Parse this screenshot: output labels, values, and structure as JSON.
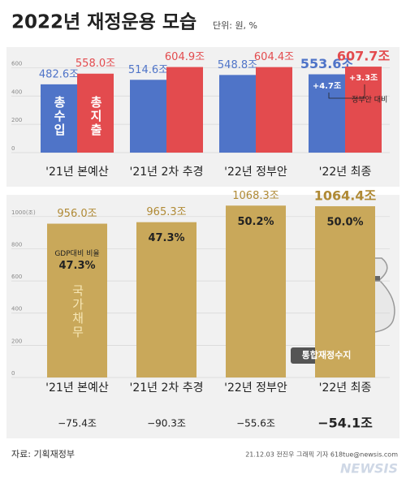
{
  "header": {
    "title": "2022년 재정운용 모습",
    "unit": "단위: 원, %"
  },
  "chart_data": [
    {
      "type": "bar",
      "categories": [
        "'21년 본예산",
        "'21년 2차 추경",
        "'22년 정부안",
        "'22년 최종"
      ],
      "series": [
        {
          "name": "총수입",
          "color": "#4f74c8",
          "values": [
            482.6,
            514.6,
            548.8,
            553.6
          ],
          "value_labels": [
            "482.6조",
            "514.6조",
            "548.8조",
            "553.6조"
          ]
        },
        {
          "name": "총지출",
          "color": "#e34b4e",
          "values": [
            558.0,
            604.9,
            604.4,
            607.7
          ],
          "value_labels": [
            "558.0조",
            "604.9조",
            "604.4조",
            "607.7조"
          ]
        }
      ],
      "ylim": [
        0,
        700
      ],
      "yticks": [
        0,
        200,
        400,
        600
      ],
      "annotations": [
        "+4.7조",
        "+3.3조",
        "정부안 대비"
      ]
    },
    {
      "type": "bar",
      "categories": [
        "'21년 본예산",
        "'21년 2차 추경",
        "'22년 정부안",
        "'22년 최종"
      ],
      "series": [
        {
          "name": "국가채무",
          "color": "#c9a85a",
          "values": [
            956.0,
            965.3,
            1068.3,
            1064.4
          ],
          "value_labels": [
            "956.0조",
            "965.3조",
            "1068.3조",
            "1064.4조"
          ]
        },
        {
          "name": "GDP대비 비율",
          "values": [
            47.3,
            47.3,
            50.2,
            50.0
          ],
          "value_labels": [
            "47.3%",
            "47.3%",
            "50.2%",
            "50.0%"
          ]
        }
      ],
      "ylim": [
        0,
        1100
      ],
      "yticks": [
        0,
        200,
        400,
        600,
        800,
        {
          "value": 1000,
          "label": "1000(조)"
        }
      ]
    },
    {
      "type": "bar",
      "series": [
        {
          "name": "통합재정수지",
          "color": "#8c8c8c",
          "values": [
            -75.4,
            -90.3,
            -55.6,
            -54.1
          ],
          "value_labels": [
            "−75.4조",
            "−90.3조",
            "−55.6조",
            "−54.1조"
          ]
        }
      ],
      "ylim": [
        -400,
        0
      ]
    }
  ],
  "footer": {
    "source": "자료: 기획재정부",
    "credit": "21.12.03 전진우 그래픽 기자 618tue@newsis.com",
    "logo": "NEWSIS"
  }
}
